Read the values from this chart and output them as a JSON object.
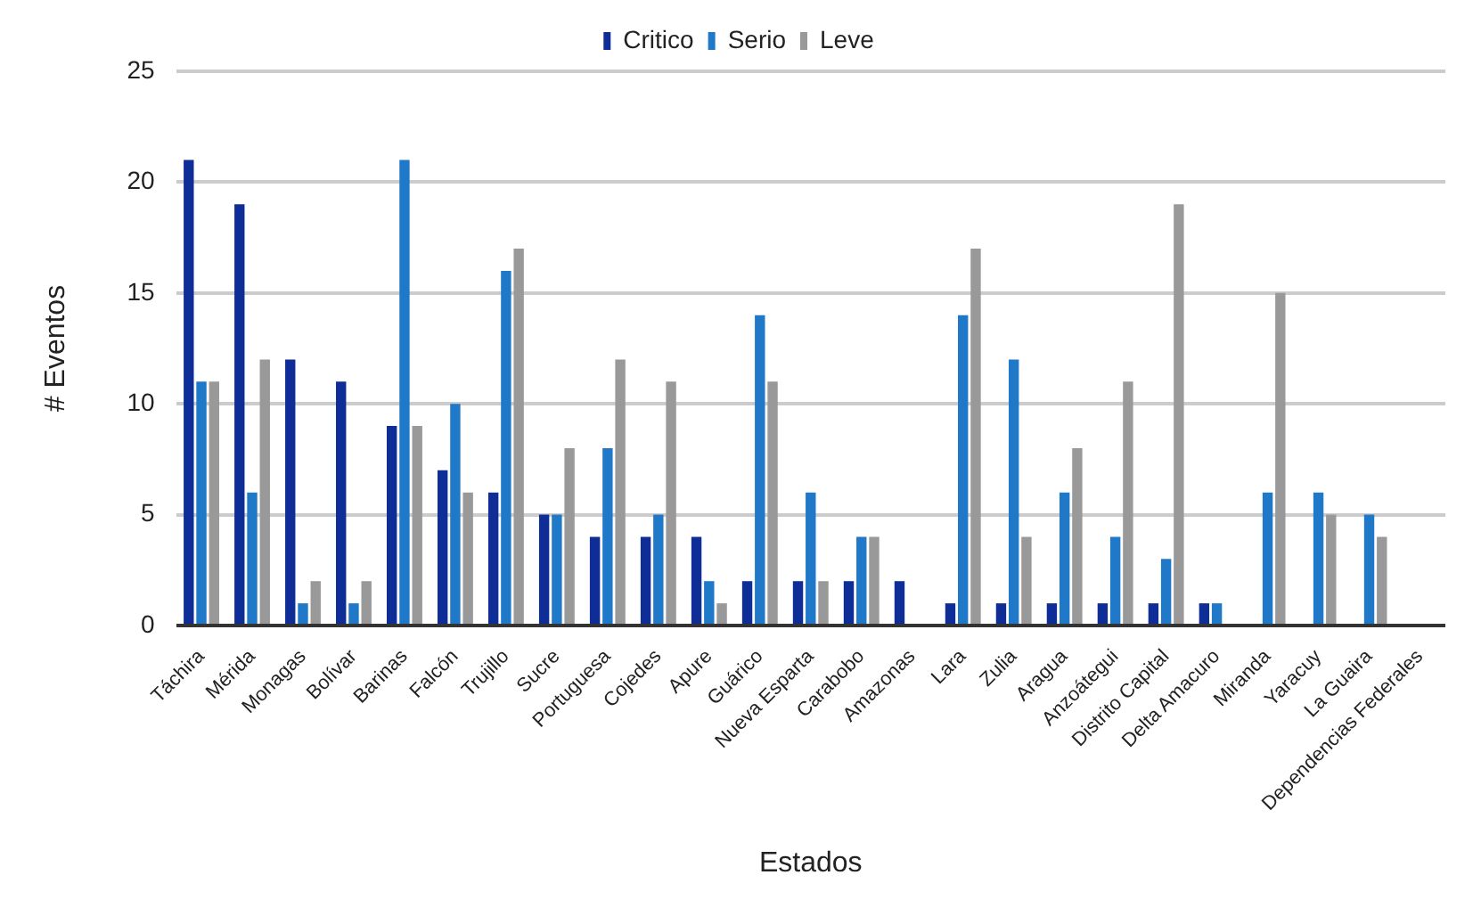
{
  "chart_data": {
    "type": "bar",
    "xlabel": "Estados",
    "ylabel": "# Eventos",
    "categories": [
      "Táchira",
      "Mérida",
      "Monagas",
      "Bolívar",
      "Barinas",
      "Falcón",
      "Trujillo",
      "Sucre",
      "Portuguesa",
      "Cojedes",
      "Apure",
      "Guárico",
      "Nueva Esparta",
      "Carabobo",
      "Amazonas",
      "Lara",
      "Zulia",
      "Aragua",
      "Anzoátegui",
      "Distrito Capital",
      "Delta Amacuro",
      "Miranda",
      "Yaracuy",
      "La Guaira",
      "Dependencias Federales"
    ],
    "series": [
      {
        "name": "Critico",
        "color": "#0f2d96",
        "values": [
          21,
          19,
          12,
          11,
          9,
          7,
          6,
          5,
          4,
          4,
          4,
          2,
          2,
          2,
          2,
          1,
          1,
          1,
          1,
          1,
          1,
          0,
          0,
          0,
          0
        ]
      },
      {
        "name": "Serio",
        "color": "#1f78c8",
        "values": [
          11,
          6,
          1,
          1,
          21,
          10,
          16,
          5,
          8,
          5,
          2,
          14,
          6,
          4,
          0,
          14,
          12,
          6,
          4,
          3,
          1,
          6,
          6,
          5,
          0
        ]
      },
      {
        "name": "Leve",
        "color": "#999999",
        "values": [
          11,
          12,
          2,
          2,
          9,
          6,
          17,
          8,
          12,
          11,
          1,
          11,
          2,
          4,
          0,
          17,
          4,
          8,
          11,
          19,
          0,
          15,
          5,
          4,
          0
        ]
      }
    ],
    "ylim": [
      0,
      25
    ],
    "yticks": [
      0,
      5,
      10,
      15,
      20,
      25
    ],
    "grid": "y",
    "legend": "top"
  }
}
